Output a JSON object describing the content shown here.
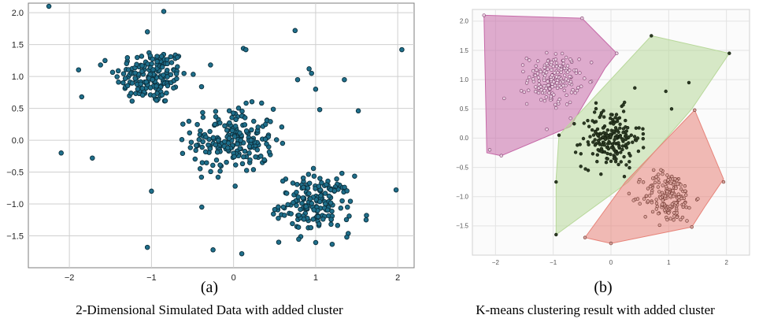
{
  "chart_data": [
    {
      "type": "scatter",
      "panel_label": "(a)",
      "caption": "2-Dimensional Simulated Data with added cluster",
      "xlim": [
        -2.5,
        2.2
      ],
      "ylim": [
        -2.0,
        2.15
      ],
      "xticks": [
        -2,
        -1,
        0,
        1,
        2
      ],
      "yticks": [
        -1.5,
        -1.0,
        -0.5,
        0.0,
        0.5,
        1.0,
        1.5,
        2.0
      ],
      "xtick_labels": [
        "−2",
        "−1",
        "0",
        "1",
        "2"
      ],
      "ytick_labels": [
        "−1.5",
        "−1.0",
        "−0.5",
        "0.0",
        "0.5",
        "1.0",
        "1.5",
        "2.0"
      ],
      "grid": true,
      "point_color": "#1f6f8b",
      "point_edge_color": "#0b2f3d",
      "clusters": [
        {
          "center": [
            -1.0,
            1.0
          ],
          "spread": [
            0.22,
            0.22
          ],
          "count": 170
        },
        {
          "center": [
            0.0,
            0.0
          ],
          "spread": [
            0.25,
            0.25
          ],
          "count": 200
        },
        {
          "center": [
            1.0,
            -1.0
          ],
          "spread": [
            0.22,
            0.22
          ],
          "count": 170
        }
      ],
      "outliers": [
        [
          -2.25,
          2.1
        ],
        [
          -0.85,
          2.02
        ],
        [
          0.75,
          1.72
        ],
        [
          2.05,
          1.42
        ],
        [
          -1.05,
          1.7
        ],
        [
          0.92,
          1.12
        ],
        [
          0.95,
          1.05
        ],
        [
          1.35,
          0.95
        ],
        [
          1.0,
          0.8
        ],
        [
          1.52,
          0.46
        ],
        [
          1.05,
          0.48
        ],
        [
          -2.1,
          -0.2
        ],
        [
          -1.72,
          -0.28
        ],
        [
          -1.85,
          0.68
        ],
        [
          -1.62,
          1.18
        ],
        [
          -1.0,
          -0.8
        ],
        [
          -1.05,
          -1.68
        ],
        [
          -0.25,
          -1.72
        ],
        [
          0.1,
          -1.78
        ],
        [
          1.98,
          -0.78
        ],
        [
          0.12,
          1.44
        ],
        [
          0.15,
          1.42
        ],
        [
          -0.28,
          1.18
        ],
        [
          0.02,
          -0.72
        ],
        [
          0.78,
          0.95
        ],
        [
          0.55,
          -1.6
        ],
        [
          1.62,
          -1.18
        ],
        [
          1.38,
          -1.52
        ]
      ]
    },
    {
      "type": "scatter",
      "panel_label": "(b)",
      "caption": "K-means clustering result with added cluster",
      "xlim": [
        -2.4,
        2.4
      ],
      "ylim": [
        -2.0,
        2.2
      ],
      "xticks": [
        -2,
        -1,
        0,
        1,
        2
      ],
      "yticks": [
        -1.5,
        -1.0,
        -0.5,
        0.0,
        0.5,
        1.0,
        1.5,
        2.0
      ],
      "xtick_labels": [
        "−2",
        "−1",
        "0",
        "1",
        "2"
      ],
      "ytick_labels": [
        "−1.5",
        "−1.0",
        "−0.5",
        "0.0",
        "0.5",
        "1.0",
        "1.5",
        "2.0"
      ],
      "grid": true,
      "clusters": [
        {
          "name": "",
          "hull_color": "#c66aa8",
          "point_color": "#e9cde0",
          "point_edge_color": "#7a3c68",
          "center": [
            -1.0,
            1.0
          ],
          "spread": [
            0.22,
            0.22
          ],
          "count": 170,
          "hull": [
            [
              -2.2,
              2.1
            ],
            [
              -0.5,
              2.05
            ],
            [
              0.1,
              1.45
            ],
            [
              -0.1,
              1.2
            ],
            [
              -0.7,
              0.2
            ],
            [
              -1.9,
              -0.3
            ],
            [
              -2.15,
              -0.25
            ]
          ]
        },
        {
          "name": "",
          "hull_color": "#b8d89a",
          "point_color": "#2c3b22",
          "point_edge_color": "#141d10",
          "center": [
            0.0,
            0.0
          ],
          "spread": [
            0.25,
            0.25
          ],
          "count": 200,
          "hull": [
            [
              0.7,
              1.75
            ],
            [
              2.05,
              1.45
            ],
            [
              1.4,
              0.5
            ],
            [
              0.3,
              -0.75
            ],
            [
              -0.95,
              -1.65
            ],
            [
              -0.95,
              -0.7
            ],
            [
              -0.9,
              0.05
            ]
          ]
        },
        {
          "name": "",
          "hull_color": "#e7847a",
          "point_color": "#d7a49d",
          "point_edge_color": "#6b2f28",
          "center": [
            1.0,
            -1.0
          ],
          "spread": [
            0.22,
            0.22
          ],
          "count": 170,
          "hull": [
            [
              1.45,
              0.48
            ],
            [
              1.95,
              -0.7
            ],
            [
              1.62,
              -1.18
            ],
            [
              1.4,
              -1.52
            ],
            [
              0.0,
              -1.8
            ],
            [
              -0.45,
              -1.7
            ],
            [
              0.25,
              -0.75
            ]
          ]
        }
      ],
      "extra_points": [
        {
          "p": [
            -0.95,
            -1.65
          ],
          "c": 1
        },
        {
          "p": [
            -0.95,
            -0.75
          ],
          "c": 1
        },
        {
          "p": [
            0.7,
            1.75
          ],
          "c": 1
        },
        {
          "p": [
            2.05,
            1.45
          ],
          "c": 1
        },
        {
          "p": [
            1.05,
            0.5
          ],
          "c": 1
        },
        {
          "p": [
            0.95,
            0.8
          ],
          "c": 1
        },
        {
          "p": [
            -0.9,
            0.05
          ],
          "c": 1
        },
        {
          "p": [
            1.35,
            0.95
          ],
          "c": 1
        },
        {
          "p": [
            -2.2,
            2.1
          ],
          "c": 0
        },
        {
          "p": [
            -0.5,
            2.05
          ],
          "c": 0
        },
        {
          "p": [
            0.1,
            1.45
          ],
          "c": 0
        },
        {
          "p": [
            -1.9,
            -0.3
          ],
          "c": 0
        },
        {
          "p": [
            -2.1,
            -0.2
          ],
          "c": 0
        },
        {
          "p": [
            -1.85,
            0.68
          ],
          "c": 0
        },
        {
          "p": [
            1.45,
            0.48
          ],
          "c": 2
        },
        {
          "p": [
            1.95,
            -0.75
          ],
          "c": 2
        },
        {
          "p": [
            0.0,
            -1.8
          ],
          "c": 2
        },
        {
          "p": [
            -0.45,
            -1.7
          ],
          "c": 2
        },
        {
          "p": [
            1.4,
            -1.52
          ],
          "c": 2
        }
      ]
    }
  ]
}
